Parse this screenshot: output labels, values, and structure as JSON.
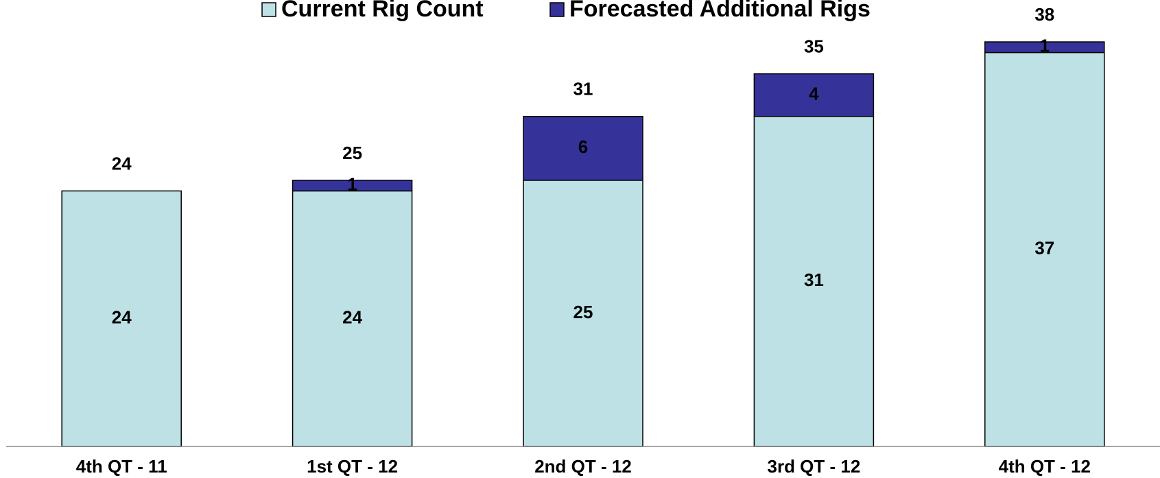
{
  "chart_data": {
    "type": "stacked-bar",
    "categories": [
      "4th QT - 11",
      "1st QT - 12",
      "2nd QT - 12",
      "3rd QT - 12",
      "4th QT - 12"
    ],
    "series": [
      {
        "name": "Current Rig Count",
        "color": "#bde1e5",
        "values": [
          24,
          24,
          25,
          31,
          37
        ]
      },
      {
        "name": "Forecasted Additional Rigs",
        "color": "#35339a",
        "values": [
          null,
          1,
          6,
          4,
          1
        ]
      }
    ],
    "totals": [
      24,
      25,
      31,
      35,
      38
    ],
    "ylim": [
      0,
      40
    ],
    "legend": "top"
  }
}
